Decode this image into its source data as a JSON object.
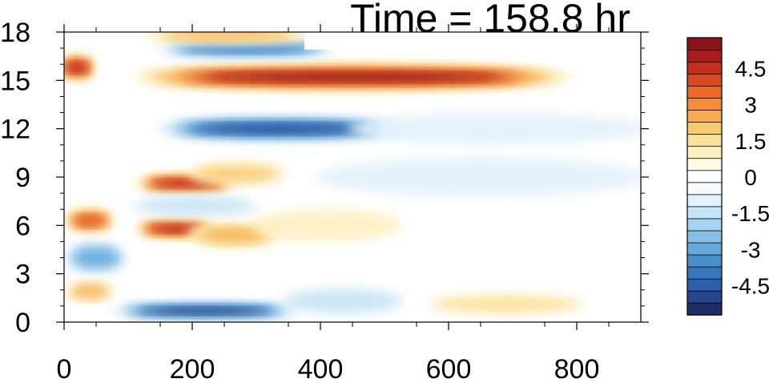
{
  "chart_data": {
    "type": "heatmap",
    "title": "Time = 158.8 hr",
    "xlabel": "",
    "ylabel": "",
    "xlim": [
      0,
      900
    ],
    "ylim": [
      0,
      18
    ],
    "x_ticks": [
      "0",
      "200",
      "400",
      "600",
      "800"
    ],
    "x_tick_values": [
      0,
      200,
      400,
      600,
      800
    ],
    "y_ticks": [
      "0",
      "3",
      "6",
      "9",
      "12",
      "15",
      "18"
    ],
    "y_tick_values": [
      0,
      3,
      6,
      9,
      12,
      15,
      18
    ],
    "colorbar": {
      "levels": [
        -5.5,
        -5,
        -4.5,
        -4,
        -3.5,
        -3,
        -2.5,
        -2,
        -1.5,
        -1,
        -0.5,
        0,
        0.5,
        1,
        1.5,
        2,
        2.5,
        3,
        3.5,
        4,
        4.5,
        5,
        5.5
      ],
      "colors": [
        "#1b2e66",
        "#23468f",
        "#2d5fa8",
        "#3877bd",
        "#4a8fcc",
        "#66a8da",
        "#86bfe6",
        "#a8d3ef",
        "#c7e4f5",
        "#e3f1fa",
        "#f7fbfd",
        "#ffffff",
        "#fefbe8",
        "#fdf0c2",
        "#fce19a",
        "#f9ca74",
        "#f6ac52",
        "#f28b3a",
        "#e9692b",
        "#da4a22",
        "#c42d1f",
        "#a81b1e",
        "#8a1419"
      ],
      "tick_labels": [
        "4.5",
        "3",
        "1.5",
        "0",
        "-1.5",
        "-3",
        "-4.5"
      ],
      "tick_values": [
        4.5,
        3,
        1.5,
        0,
        -1.5,
        -3,
        -4.5
      ]
    },
    "features": [
      {
        "x0": 110,
        "x1": 790,
        "y": 15.2,
        "h": 1.0,
        "v": 5.5
      },
      {
        "x0": 150,
        "x1": 520,
        "y": 12.0,
        "h": 0.9,
        "v": -5.2
      },
      {
        "x0": 450,
        "x1": 900,
        "y": 12.0,
        "h": 1.3,
        "v": -1.2
      },
      {
        "x0": 400,
        "x1": 900,
        "y": 9.0,
        "h": 1.8,
        "v": -0.9
      },
      {
        "x0": 120,
        "x1": 260,
        "y": 8.6,
        "h": 0.6,
        "v": 4.8
      },
      {
        "x0": 200,
        "x1": 340,
        "y": 9.2,
        "h": 0.8,
        "v": 1.8
      },
      {
        "x0": 120,
        "x1": 230,
        "y": 5.8,
        "h": 0.6,
        "v": 4.8
      },
      {
        "x0": 200,
        "x1": 330,
        "y": 5.4,
        "h": 1.0,
        "v": 2.5
      },
      {
        "x0": 300,
        "x1": 520,
        "y": 6.0,
        "h": 1.4,
        "v": 1.2
      },
      {
        "x0": 110,
        "x1": 300,
        "y": 7.2,
        "h": 0.7,
        "v": -1.6
      },
      {
        "x0": 80,
        "x1": 360,
        "y": 0.7,
        "h": 0.5,
        "v": -5.3
      },
      {
        "x0": 350,
        "x1": 520,
        "y": 1.3,
        "h": 0.9,
        "v": -1.3
      },
      {
        "x0": 0,
        "x1": 40,
        "y": 15.8,
        "h": 1.0,
        "v": 4.8
      },
      {
        "x0": 10,
        "x1": 70,
        "y": 6.3,
        "h": 0.9,
        "v": 4.2
      },
      {
        "x0": 10,
        "x1": 90,
        "y": 4.0,
        "h": 1.5,
        "v": -3.2
      },
      {
        "x0": 10,
        "x1": 70,
        "y": 1.9,
        "h": 0.6,
        "v": 2.3
      },
      {
        "x0": 150,
        "x1": 420,
        "y": 17.0,
        "h": 0.6,
        "v": -4.2
      },
      {
        "x0": 130,
        "x1": 380,
        "y": 17.8,
        "h": 0.4,
        "v": 2.6
      },
      {
        "x0": 580,
        "x1": 800,
        "y": 1.1,
        "h": 0.5,
        "v": 1.4
      }
    ]
  }
}
